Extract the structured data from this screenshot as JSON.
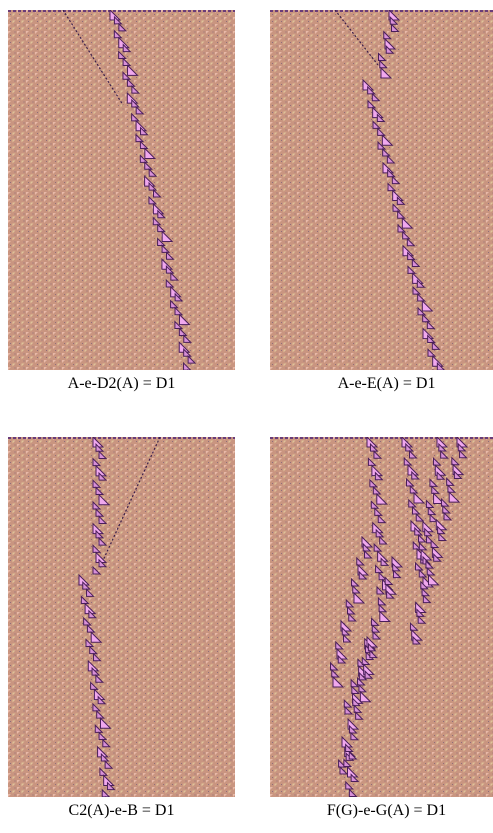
{
  "panels": [
    {
      "caption": "A-e-D2(A) = D1"
    },
    {
      "caption": "A-e-E(A) = D1"
    },
    {
      "caption": "C2(A)-e-B = D1"
    },
    {
      "caption": "F(G)-e-G(A) = D1"
    }
  ]
}
